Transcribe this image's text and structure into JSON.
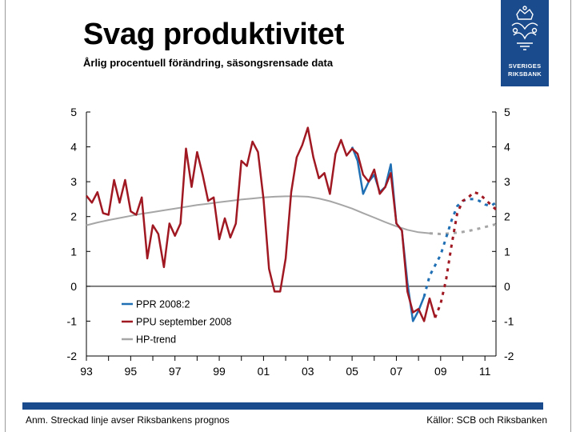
{
  "title": "Svag produktivitet",
  "subtitle": "Årlig procentuell förändring, säsongsrensade data",
  "logo": {
    "line1": "SVERIGES",
    "line2": "RIKSBANK",
    "color": "#1a4b8c"
  },
  "footnote_left": "Anm. Streckad linje avser Riksbankens prognos",
  "footnote_right": "Källor: SCB och Riksbanken",
  "chart_data": {
    "type": "line",
    "title": "Svag produktivitet",
    "xlabel": "",
    "ylabel": "",
    "xlim": [
      1993,
      2011.5
    ],
    "ylim": [
      -2,
      5
    ],
    "x_ticks": [
      1993,
      1995,
      1997,
      1999,
      2001,
      2003,
      2005,
      2007,
      2009,
      2011
    ],
    "x_tick_labels": [
      "93",
      "95",
      "97",
      "99",
      "01",
      "03",
      "05",
      "07",
      "09",
      "11"
    ],
    "y_ticks": [
      -2,
      -1,
      0,
      1,
      2,
      3,
      4,
      5
    ],
    "y_tick_labels": [
      "-2",
      "-1",
      "0",
      "1",
      "2",
      "3",
      "4",
      "5"
    ],
    "legend_position": "bottom-left",
    "series": [
      {
        "name": "PPR 2008:2",
        "color": "#1f6fb4",
        "x": [
          2005.0,
          2005.25,
          2005.5,
          2005.75,
          2006.0,
          2006.25,
          2006.5,
          2006.75,
          2007.0,
          2007.25,
          2007.5,
          2007.75,
          2008.0,
          2008.25
        ],
        "values": [
          4.0,
          3.6,
          2.65,
          3.0,
          3.2,
          2.7,
          2.85,
          3.5,
          1.8,
          1.6,
          0.1,
          -1.0,
          -0.7,
          -0.3
        ],
        "forecast_x": [
          2008.25,
          2008.5,
          2008.75,
          2009.0,
          2009.25,
          2009.5,
          2009.75,
          2010.0,
          2010.25,
          2010.5,
          2010.75,
          2011.0,
          2011.25,
          2011.5
        ],
        "forecast_values": [
          -0.3,
          0.3,
          0.6,
          0.9,
          1.4,
          1.9,
          2.3,
          2.45,
          2.5,
          2.5,
          2.45,
          2.35,
          2.3,
          2.4
        ]
      },
      {
        "name": "PPU september 2008",
        "color": "#a01822",
        "x": [
          1993.0,
          1993.25,
          1993.5,
          1993.75,
          1994.0,
          1994.25,
          1994.5,
          1994.75,
          1995.0,
          1995.25,
          1995.5,
          1995.75,
          1996.0,
          1996.25,
          1996.5,
          1996.75,
          1997.0,
          1997.25,
          1997.5,
          1997.75,
          1998.0,
          1998.25,
          1998.5,
          1998.75,
          1999.0,
          1999.25,
          1999.5,
          1999.75,
          2000.0,
          2000.25,
          2000.5,
          2000.75,
          2001.0,
          2001.25,
          2001.5,
          2001.75,
          2002.0,
          2002.25,
          2002.5,
          2002.75,
          2003.0,
          2003.25,
          2003.5,
          2003.75,
          2004.0,
          2004.25,
          2004.5,
          2004.75,
          2005.0,
          2005.25,
          2005.5,
          2005.75,
          2006.0,
          2006.25,
          2006.5,
          2006.75,
          2007.0,
          2007.25,
          2007.5,
          2007.75,
          2008.0,
          2008.25,
          2008.5,
          2008.75
        ],
        "values": [
          2.6,
          2.4,
          2.7,
          2.1,
          2.05,
          3.05,
          2.4,
          3.05,
          2.15,
          2.05,
          2.55,
          0.8,
          1.75,
          1.5,
          0.55,
          1.8,
          1.45,
          1.8,
          3.95,
          2.85,
          3.85,
          3.2,
          2.45,
          2.55,
          1.35,
          1.95,
          1.4,
          1.8,
          3.6,
          3.45,
          4.15,
          3.85,
          2.5,
          0.5,
          -0.15,
          -0.15,
          0.8,
          2.7,
          3.7,
          4.05,
          4.55,
          3.7,
          3.1,
          3.25,
          2.65,
          3.8,
          4.2,
          3.75,
          3.95,
          3.8,
          3.2,
          3.0,
          3.35,
          2.65,
          2.85,
          3.25,
          1.8,
          1.6,
          -0.15,
          -0.75,
          -0.65,
          -1.0,
          -0.35,
          -0.9
        ],
        "forecast_x": [
          2008.75,
          2009.0,
          2009.25,
          2009.5,
          2009.75,
          2010.0,
          2010.25,
          2010.5,
          2010.75,
          2011.0,
          2011.25,
          2011.5
        ],
        "forecast_values": [
          -0.9,
          -0.5,
          0.2,
          1.2,
          2.1,
          2.45,
          2.55,
          2.7,
          2.65,
          2.5,
          2.35,
          2.2
        ]
      },
      {
        "name": "HP-trend",
        "color": "#a6a6a6",
        "x": [
          1993.0,
          1993.5,
          1994.0,
          1994.5,
          1995.0,
          1995.5,
          1996.0,
          1996.5,
          1997.0,
          1997.5,
          1998.0,
          1998.5,
          1999.0,
          1999.5,
          2000.0,
          2000.5,
          2001.0,
          2001.5,
          2002.0,
          2002.5,
          2003.0,
          2003.5,
          2004.0,
          2004.5,
          2005.0,
          2005.5,
          2006.0,
          2006.5,
          2007.0,
          2007.5,
          2008.0,
          2008.5
        ],
        "values": [
          1.75,
          1.83,
          1.9,
          1.96,
          2.02,
          2.08,
          2.13,
          2.18,
          2.23,
          2.28,
          2.33,
          2.37,
          2.41,
          2.45,
          2.49,
          2.52,
          2.55,
          2.57,
          2.58,
          2.58,
          2.57,
          2.52,
          2.44,
          2.34,
          2.23,
          2.1,
          1.97,
          1.84,
          1.72,
          1.62,
          1.55,
          1.52
        ],
        "forecast_x": [
          2008.5,
          2009.0,
          2009.5,
          2010.0,
          2010.5,
          2011.0,
          2011.5
        ],
        "forecast_values": [
          1.52,
          1.5,
          1.52,
          1.56,
          1.62,
          1.7,
          1.78
        ]
      }
    ]
  }
}
